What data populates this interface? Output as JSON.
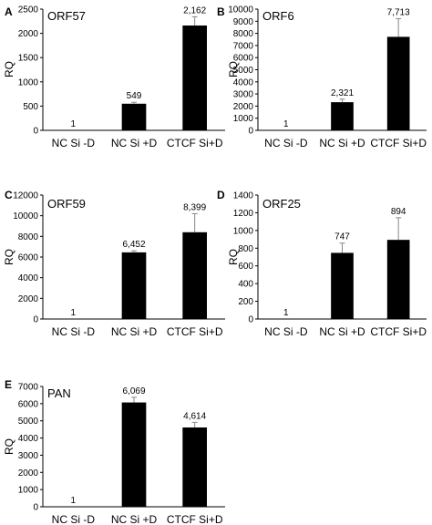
{
  "colors": {
    "bar": "#000000",
    "axis": "#000000",
    "error_bar": "#888888",
    "background": "#ffffff"
  },
  "chart_data": [
    {
      "panel_letter": "A",
      "type": "bar",
      "title": "ORF57",
      "ylabel": "RQ",
      "categories": [
        "NC Si -D",
        "NC Si +D",
        "CTCF Si+D"
      ],
      "values": [
        1,
        549,
        2162
      ],
      "labels": [
        "1",
        "549",
        "2,162"
      ],
      "errors": [
        0,
        30,
        180
      ],
      "ylim": [
        0,
        2500
      ],
      "yticks": [
        0,
        500,
        1000,
        1500,
        2000,
        2500
      ],
      "grid": false
    },
    {
      "panel_letter": "B",
      "type": "bar",
      "title": "ORF6",
      "ylabel": "RQ",
      "categories": [
        "NC Si -D",
        "NC Si +D",
        "CTCF Si+D"
      ],
      "values": [
        1,
        2321,
        7713
      ],
      "labels": [
        "1",
        "2,321",
        "7,713"
      ],
      "errors": [
        0,
        250,
        1500
      ],
      "ylim": [
        0,
        10000
      ],
      "yticks": [
        0,
        1000,
        2000,
        3000,
        4000,
        5000,
        6000,
        7000,
        8000,
        9000,
        10000
      ],
      "grid": false
    },
    {
      "panel_letter": "C",
      "type": "bar",
      "title": "ORF59",
      "ylabel": "RQ",
      "categories": [
        "NC Si -D",
        "NC Si +D",
        "CTCF Si+D"
      ],
      "values": [
        1,
        6452,
        8399
      ],
      "labels": [
        "1",
        "6,452",
        "8,399"
      ],
      "errors": [
        0,
        150,
        1800
      ],
      "ylim": [
        0,
        12000
      ],
      "yticks": [
        0,
        2000,
        4000,
        6000,
        8000,
        10000,
        12000
      ],
      "grid": false
    },
    {
      "panel_letter": "D",
      "type": "bar",
      "title": "ORF25",
      "ylabel": "RQ",
      "categories": [
        "NC Si -D",
        "NC Si +D",
        "CTCF Si+D"
      ],
      "values": [
        1,
        747,
        894
      ],
      "labels": [
        "1",
        "747",
        "894"
      ],
      "errors": [
        0,
        110,
        250
      ],
      "ylim": [
        0,
        1400
      ],
      "yticks": [
        0,
        200,
        400,
        600,
        800,
        1000,
        1200,
        1400
      ],
      "grid": false
    },
    {
      "panel_letter": "E",
      "type": "bar",
      "title": "PAN",
      "ylabel": "RQ",
      "categories": [
        "NC Si -D",
        "NC Si +D",
        "CTCF Si+D"
      ],
      "values": [
        1,
        6069,
        4614
      ],
      "labels": [
        "1",
        "6,069",
        "4,614"
      ],
      "errors": [
        0,
        300,
        300
      ],
      "ylim": [
        0,
        7000
      ],
      "yticks": [
        0,
        1000,
        2000,
        3000,
        4000,
        5000,
        6000,
        7000
      ],
      "grid": false
    }
  ]
}
